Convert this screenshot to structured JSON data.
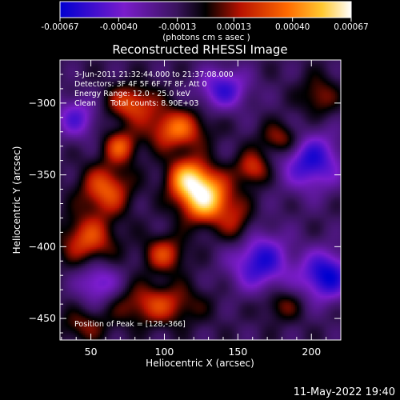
{
  "chart_data": {
    "type": "heatmap",
    "title": "Reconstructed RHESSI Image",
    "xlabel": "Heliocentric X (arcsec)",
    "ylabel": "Heliocentric Y (arcsec)",
    "xlim": [
      29,
      220
    ],
    "ylim": [
      -465,
      -270
    ],
    "x_ticks": [
      50,
      100,
      150,
      200
    ],
    "y_ticks": [
      -300,
      -350,
      -400,
      -450
    ],
    "colorbar": {
      "min": -0.00067,
      "max": 0.00067,
      "ticks": [
        "-0.00067",
        "-0.00040",
        "-0.00013",
        "0.00013",
        "0.00040",
        "0.00067"
      ],
      "unit_label": "(photons cm  s  asec )",
      "colors": [
        "#0000d0",
        "#7a1ccc",
        "#4a1a8a",
        "#000000",
        "#cc1a00",
        "#ff6600",
        "#ffcc33",
        "#ffffff"
      ]
    },
    "annotations": [
      "3-Jun-2011 21:32:44.000 to 21:37:08.000",
      "Detectors: 3F 4F 5F 6F 7F 8F, Att 0",
      "Energy Range: 12.0 - 25.0 keV",
      "Clean      Total counts: 8.90E+03",
      "Position of Peak = [128,-366]"
    ],
    "peak": {
      "x": 128,
      "y": -366
    },
    "sources": [
      {
        "x": 128,
        "y": -366,
        "sx": 12,
        "sy": 12,
        "a": 1.0
      },
      {
        "x": 116,
        "y": -352,
        "sx": 10,
        "sy": 10,
        "a": 0.75
      },
      {
        "x": 108,
        "y": -318,
        "sx": 14,
        "sy": 10,
        "a": 0.65
      },
      {
        "x": 78,
        "y": -300,
        "sx": 12,
        "sy": 9,
        "a": 0.55
      },
      {
        "x": 60,
        "y": -360,
        "sx": 12,
        "sy": 12,
        "a": 0.6
      },
      {
        "x": 48,
        "y": -395,
        "sx": 13,
        "sy": 12,
        "a": 0.55
      },
      {
        "x": 100,
        "y": -405,
        "sx": 10,
        "sy": 9,
        "a": 0.5
      },
      {
        "x": 95,
        "y": -440,
        "sx": 20,
        "sy": 10,
        "a": 0.5
      },
      {
        "x": 160,
        "y": -345,
        "sx": 8,
        "sy": 8,
        "a": 0.5
      },
      {
        "x": 180,
        "y": -325,
        "sx": 10,
        "sy": 8,
        "a": 0.45
      },
      {
        "x": 205,
        "y": -295,
        "sx": 9,
        "sy": 10,
        "a": 0.35
      },
      {
        "x": 150,
        "y": -385,
        "sx": 8,
        "sy": 12,
        "a": 0.35
      },
      {
        "x": 180,
        "y": -440,
        "sx": 10,
        "sy": 8,
        "a": 0.3
      },
      {
        "x": 45,
        "y": -455,
        "sx": 12,
        "sy": 8,
        "a": 0.3
      },
      {
        "x": 70,
        "y": -330,
        "sx": 8,
        "sy": 8,
        "a": 0.55
      },
      {
        "x": 165,
        "y": -410,
        "sx": 14,
        "sy": 14,
        "a": -0.7
      },
      {
        "x": 210,
        "y": -420,
        "sx": 12,
        "sy": 12,
        "a": -0.8
      },
      {
        "x": 200,
        "y": -340,
        "sx": 14,
        "sy": 14,
        "a": -0.7
      },
      {
        "x": 140,
        "y": -290,
        "sx": 12,
        "sy": 10,
        "a": -0.6
      },
      {
        "x": 40,
        "y": -310,
        "sx": 10,
        "sy": 10,
        "a": -0.5
      },
      {
        "x": 55,
        "y": -425,
        "sx": 10,
        "sy": 10,
        "a": -0.5
      }
    ]
  },
  "footer": {
    "date_time": "11-May-2022 19:40"
  }
}
